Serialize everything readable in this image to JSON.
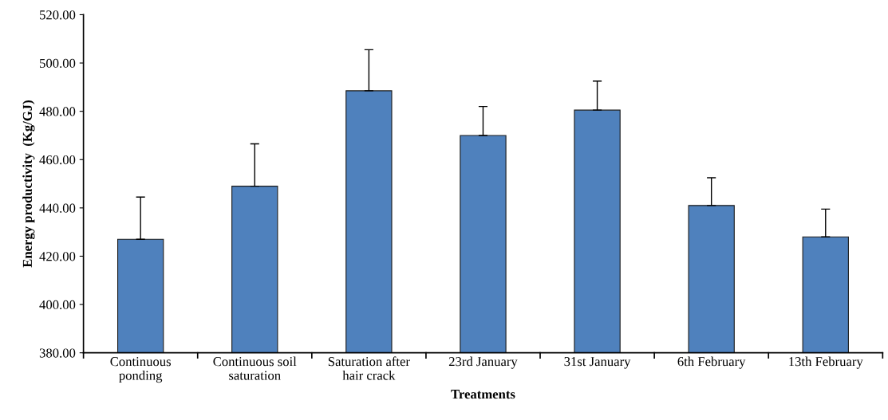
{
  "chart_data": {
    "type": "bar",
    "xlabel": "Treatments",
    "ylabel": "Energy productivity  (Kg/GJ)",
    "categories": [
      "Continuous\nponding",
      "Continuous soil\nsaturation",
      "Saturation after\nhair crack",
      "23rd January",
      "31st January",
      "6th February",
      "13th February"
    ],
    "values": [
      427,
      449,
      488.5,
      470,
      480.5,
      441,
      428
    ],
    "errors": [
      [
        427,
        444.5
      ],
      [
        449,
        466.5
      ],
      [
        488.5,
        505.5
      ],
      [
        470,
        482
      ],
      [
        480.5,
        492.5
      ],
      [
        441,
        452.5
      ],
      [
        428,
        439.5
      ]
    ],
    "color": "#4f81bd",
    "ylim": [
      380,
      520
    ],
    "yticks": [
      {
        "value": 380,
        "label": "380.00"
      },
      {
        "value": 400,
        "label": "400.00"
      },
      {
        "value": 420,
        "label": "420.00"
      },
      {
        "value": 440,
        "label": "440.00"
      },
      {
        "value": 460,
        "label": "460.00"
      },
      {
        "value": 480,
        "label": "480.00"
      },
      {
        "value": 500,
        "label": "500.00"
      },
      {
        "value": 520,
        "label": "520.00"
      }
    ],
    "grid": false,
    "legend": false
  }
}
